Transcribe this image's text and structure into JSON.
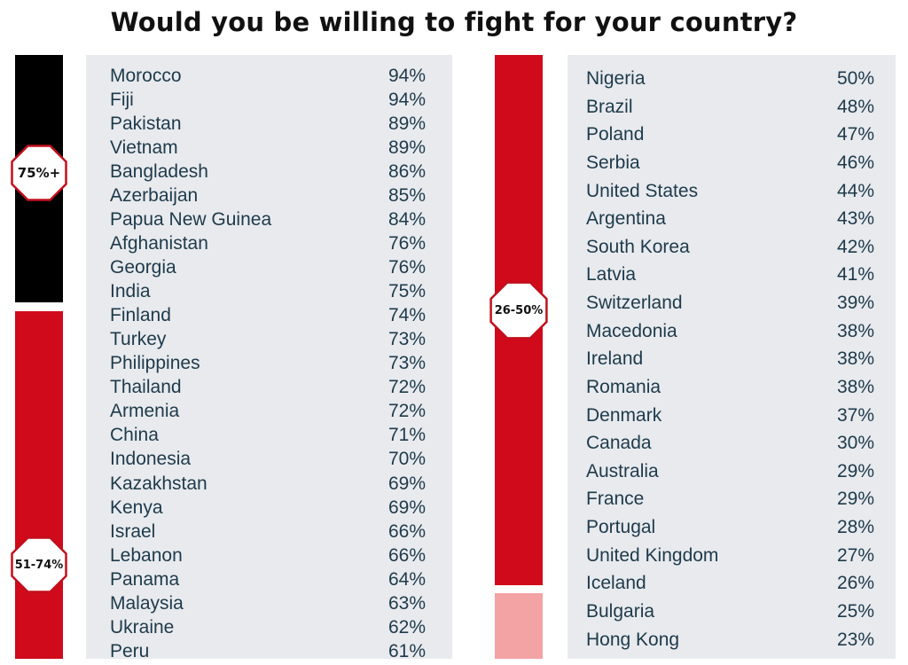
{
  "chart_data": {
    "type": "table",
    "title": "Would you be willing to fight for your country?",
    "groups": [
      {
        "label": "75%+",
        "color": "#000000",
        "rows": [
          {
            "country": "Morocco",
            "value": "94%"
          },
          {
            "country": "Fiji",
            "value": "94%"
          },
          {
            "country": "Pakistan",
            "value": "89%"
          },
          {
            "country": "Vietnam",
            "value": "89%"
          },
          {
            "country": "Bangladesh",
            "value": "86%"
          },
          {
            "country": "Azerbaijan",
            "value": "85%"
          },
          {
            "country": "Papua New Guinea",
            "value": "84%"
          },
          {
            "country": "Afghanistan",
            "value": "76%"
          },
          {
            "country": "Georgia",
            "value": "76%"
          },
          {
            "country": "India",
            "value": "75%"
          }
        ]
      },
      {
        "label": "51-74%",
        "color": "#d0091b",
        "rows": [
          {
            "country": "Finland",
            "value": "74%"
          },
          {
            "country": "Turkey",
            "value": "73%"
          },
          {
            "country": "Philippines",
            "value": "73%"
          },
          {
            "country": "Thailand",
            "value": "72%"
          },
          {
            "country": "Armenia",
            "value": "72%"
          },
          {
            "country": "China",
            "value": "71%"
          },
          {
            "country": "Indonesia",
            "value": "70%"
          },
          {
            "country": "Kazakhstan",
            "value": "69%"
          },
          {
            "country": "Kenya",
            "value": "69%"
          },
          {
            "country": "Israel",
            "value": "66%"
          },
          {
            "country": "Lebanon",
            "value": "66%"
          },
          {
            "country": "Panama",
            "value": "64%"
          },
          {
            "country": "Malaysia",
            "value": "63%"
          },
          {
            "country": "Ukraine",
            "value": "62%"
          },
          {
            "country": "Peru",
            "value": "61%"
          }
        ]
      },
      {
        "label": "26-50%",
        "color": "#d0091b",
        "rows": [
          {
            "country": "Nigeria",
            "value": "50%"
          },
          {
            "country": "Brazil",
            "value": "48%"
          },
          {
            "country": "Poland",
            "value": "47%"
          },
          {
            "country": "Serbia",
            "value": "46%"
          },
          {
            "country": "United States",
            "value": "44%"
          },
          {
            "country": "Argentina",
            "value": "43%"
          },
          {
            "country": "South Korea",
            "value": "42%"
          },
          {
            "country": "Latvia",
            "value": "41%"
          },
          {
            "country": "Switzerland",
            "value": "39%"
          },
          {
            "country": "Macedonia",
            "value": "38%"
          },
          {
            "country": "Ireland",
            "value": "38%"
          },
          {
            "country": "Romania",
            "value": "38%"
          },
          {
            "country": "Denmark",
            "value": "37%"
          },
          {
            "country": "Canada",
            "value": "30%"
          },
          {
            "country": "Australia",
            "value": "29%"
          },
          {
            "country": "France",
            "value": "29%"
          },
          {
            "country": "Portugal",
            "value": "28%"
          },
          {
            "country": "United Kingdom",
            "value": "27%"
          },
          {
            "country": "Iceland",
            "value": "26%"
          }
        ]
      },
      {
        "label": "",
        "color": "#f4a3a5",
        "rows": [
          {
            "country": "Bulgaria",
            "value": "25%"
          },
          {
            "country": "Hong Kong",
            "value": "23%"
          }
        ]
      }
    ]
  }
}
